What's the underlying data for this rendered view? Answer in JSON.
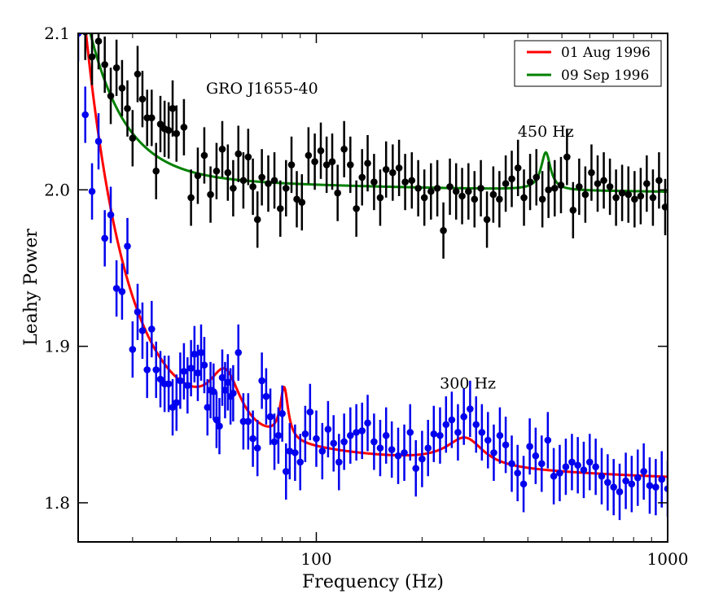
{
  "chart_data": {
    "type": "scatter",
    "title": "",
    "annotation_source": "GRO J1655-40",
    "annotations": [
      {
        "text": "450 Hz",
        "x": 450,
        "y": 2.034
      },
      {
        "text": "300 Hz",
        "x": 270,
        "y": 1.873
      }
    ],
    "xlabel": "Frequency (Hz)",
    "ylabel": "Leahy Power",
    "xscale": "log",
    "xlim": [
      21,
      1000
    ],
    "ylim": [
      1.775,
      2.1
    ],
    "x_ticks": [
      {
        "v": 100,
        "label": "100"
      },
      {
        "v": 1000,
        "label": "1000"
      }
    ],
    "y_ticks": [
      {
        "v": 1.8,
        "label": "1.8"
      },
      {
        "v": 1.9,
        "label": "1.9"
      },
      {
        "v": 2.0,
        "label": "2.0"
      },
      {
        "v": 2.1,
        "label": "2.1"
      }
    ],
    "legend": {
      "position": "top-right",
      "entries": [
        {
          "label": "01 Aug 1996",
          "color": "#ff0000"
        },
        {
          "label": "09 Sep 1996",
          "color": "#008000"
        }
      ]
    },
    "series": [
      {
        "name": "09 Sep 1996 data",
        "color": "#000000",
        "err": 0.018,
        "x": [
          22,
          23,
          24,
          25,
          26,
          27,
          28,
          29,
          30,
          31,
          32,
          33,
          34,
          35,
          36,
          37,
          38,
          39,
          40,
          42,
          44,
          46,
          48,
          50,
          52,
          54,
          56,
          58,
          60,
          62,
          64,
          66,
          68,
          70,
          73,
          76,
          79,
          82,
          85,
          88,
          91,
          95,
          99,
          103,
          107,
          111,
          115,
          120,
          125,
          130,
          135,
          140,
          146,
          152,
          158,
          165,
          172,
          179,
          187,
          195,
          203,
          212,
          221,
          230,
          240,
          250,
          260,
          271,
          282,
          294,
          306,
          319,
          332,
          346,
          360,
          375,
          390,
          406,
          423,
          440,
          458,
          477,
          497,
          517,
          538,
          560,
          583,
          607,
          632,
          658,
          685,
          713,
          742,
          773,
          805,
          838,
          872,
          908,
          945,
          984
        ],
        "values": [
          2.101,
          2.085,
          2.095,
          2.08,
          2.06,
          2.078,
          2.065,
          2.052,
          2.033,
          2.074,
          2.058,
          2.046,
          2.046,
          2.012,
          2.042,
          2.039,
          2.038,
          2.052,
          2.036,
          2.04,
          1.995,
          2.009,
          2.022,
          1.997,
          2.012,
          2.026,
          2.011,
          2.001,
          2.023,
          2.006,
          2.021,
          2.002,
          1.981,
          2.008,
          2.004,
          2.006,
          1.988,
          2.001,
          2.016,
          1.994,
          1.992,
          2.022,
          2.018,
          2.025,
          2.016,
          2.018,
          1.998,
          2.026,
          2.016,
          1.988,
          2.008,
          2.017,
          2.005,
          1.995,
          2.013,
          2.011,
          2.014,
          2.005,
          2.006,
          2.001,
          1.995,
          1.999,
          2.001,
          1.974,
          2.002,
          1.999,
          1.996,
          1.999,
          1.994,
          2.001,
          1.981,
          1.997,
          1.994,
          2.004,
          2.007,
          2.014,
          1.995,
          2.005,
          2.008,
          1.994,
          2.0,
          2.001,
          2.003,
          2.021,
          1.987,
          2.002,
          1.997,
          2.011,
          2.004,
          2.006,
          2.002,
          1.995,
          1.998,
          1.997,
          1.994,
          1.996,
          2.004,
          1.995,
          2.006,
          1.989
        ],
        "err_values": []
      },
      {
        "name": "01 Aug 1996 data",
        "color": "#0000ee",
        "err": 0.018,
        "x": [
          21,
          22,
          23,
          24,
          25,
          26,
          27,
          28,
          29,
          30,
          31,
          32,
          33,
          34,
          35,
          36,
          37,
          38,
          39,
          40,
          41,
          42,
          43,
          44,
          45,
          46,
          47,
          48,
          49,
          50,
          51,
          52,
          53,
          54,
          55,
          56,
          57,
          58,
          60,
          62,
          64,
          66,
          68,
          70,
          72,
          74,
          76,
          78,
          80,
          82,
          84,
          87,
          90,
          93,
          96,
          100,
          104,
          108,
          112,
          116,
          120,
          125,
          130,
          135,
          140,
          146,
          152,
          158,
          164,
          171,
          178,
          185,
          192,
          200,
          208,
          216,
          225,
          234,
          243,
          253,
          263,
          274,
          285,
          296,
          308,
          320,
          333,
          346,
          360,
          374,
          389,
          405,
          421,
          438,
          456,
          474,
          493,
          513,
          534,
          555,
          577,
          600,
          624,
          649,
          675,
          702,
          730,
          760,
          790,
          822,
          855,
          889,
          925,
          962,
          1000
        ],
        "values": [
          2.1,
          2.048,
          1.999,
          2.031,
          1.969,
          1.984,
          1.937,
          1.935,
          1.964,
          1.898,
          1.922,
          1.91,
          1.885,
          1.911,
          1.885,
          1.879,
          1.876,
          1.876,
          1.861,
          1.864,
          1.878,
          1.884,
          1.875,
          1.886,
          1.895,
          1.883,
          1.896,
          1.888,
          1.861,
          1.872,
          1.871,
          1.853,
          1.849,
          1.88,
          1.872,
          1.877,
          1.868,
          1.87,
          1.896,
          1.852,
          1.852,
          1.841,
          1.835,
          1.878,
          1.868,
          1.855,
          1.839,
          1.843,
          1.857,
          1.82,
          1.833,
          1.832,
          1.826,
          1.844,
          1.858,
          1.841,
          1.833,
          1.847,
          1.838,
          1.826,
          1.839,
          1.843,
          1.845,
          1.846,
          1.851,
          1.839,
          1.835,
          1.843,
          1.834,
          1.83,
          1.832,
          1.845,
          1.822,
          1.828,
          1.835,
          1.844,
          1.843,
          1.85,
          1.853,
          1.845,
          1.855,
          1.86,
          1.85,
          1.845,
          1.84,
          1.832,
          1.843,
          1.837,
          1.825,
          1.819,
          1.812,
          1.836,
          1.83,
          1.825,
          1.84,
          1.817,
          1.819,
          1.823,
          1.826,
          1.824,
          1.821,
          1.826,
          1.823,
          1.817,
          1.813,
          1.81,
          1.807,
          1.814,
          1.812,
          1.816,
          1.82,
          1.811,
          1.81,
          1.815,
          1.809
        ],
        "err_values": []
      }
    ]
  }
}
